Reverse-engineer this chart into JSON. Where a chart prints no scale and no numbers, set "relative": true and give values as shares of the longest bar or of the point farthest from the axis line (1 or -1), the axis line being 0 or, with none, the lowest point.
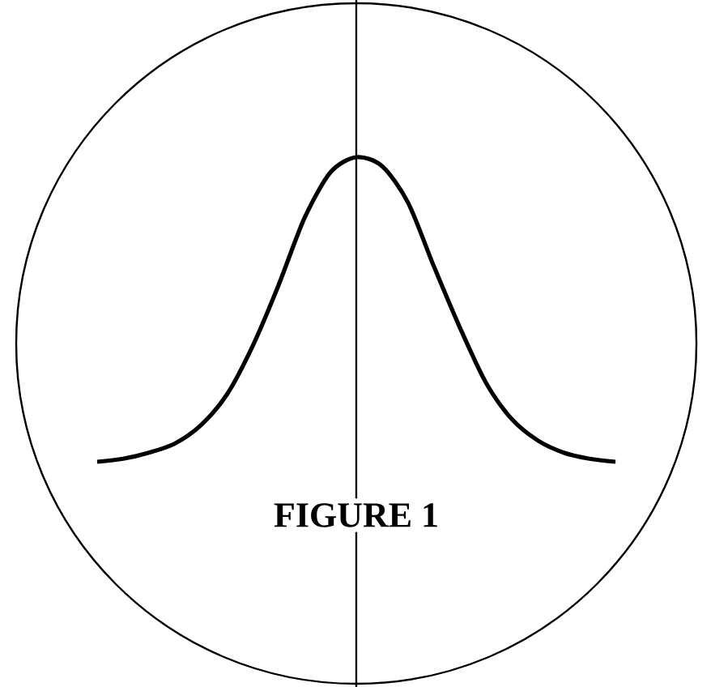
{
  "chart_data": {
    "type": "line",
    "title": "FIGURE 1",
    "relative": true,
    "color": "#000000",
    "marker": "none",
    "line_style": "solid",
    "categories": [
      null,
      null,
      null,
      null,
      null,
      null,
      null,
      null,
      null,
      null,
      null,
      null,
      null,
      null,
      null,
      null,
      null,
      null,
      null,
      null,
      null
    ],
    "values": [
      0,
      0.01,
      0.03,
      0.06,
      0.12,
      0.22,
      0.38,
      0.58,
      0.8,
      0.95,
      1,
      0.97,
      0.85,
      0.64,
      0.44,
      0.26,
      0.14,
      0.07,
      0.03,
      0.01,
      0
    ]
  }
}
